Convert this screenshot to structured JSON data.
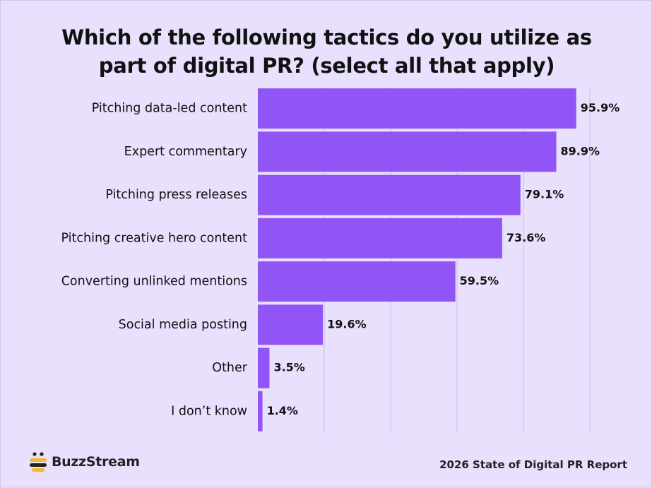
{
  "header": {
    "title": "Which of the following tactics do you utilize as part of digital PR? (select all that apply)"
  },
  "chart_data": {
    "type": "bar",
    "orientation": "horizontal",
    "categories": [
      "Pitching data-led content",
      "Expert commentary",
      "Pitching press releases",
      "Pitching creative hero content",
      "Converting unlinked mentions",
      "Social media posting",
      "Other",
      "I don’t know"
    ],
    "values": [
      95.9,
      89.9,
      79.1,
      73.6,
      59.5,
      19.6,
      3.5,
      1.4
    ],
    "value_labels": [
      "95.9%",
      "89.9%",
      "79.1%",
      "73.6%",
      "59.5%",
      "19.6%",
      "3.5%",
      "1.4%"
    ],
    "title": "Which of the following tactics do you utilize as part of digital PR? (select all that apply)",
    "xlabel": "",
    "ylabel": "",
    "xlim": [
      0,
      100
    ],
    "grid": true,
    "bar_color": "#9155f5",
    "grid_color": "#c7bde6"
  },
  "footer": {
    "logo_text": "BuzzStream",
    "source": "2026 State of Digital PR Report"
  },
  "colors": {
    "background": "#e8e0fd",
    "bar": "#9155f5",
    "logo_yellow": "#f5b82e"
  }
}
